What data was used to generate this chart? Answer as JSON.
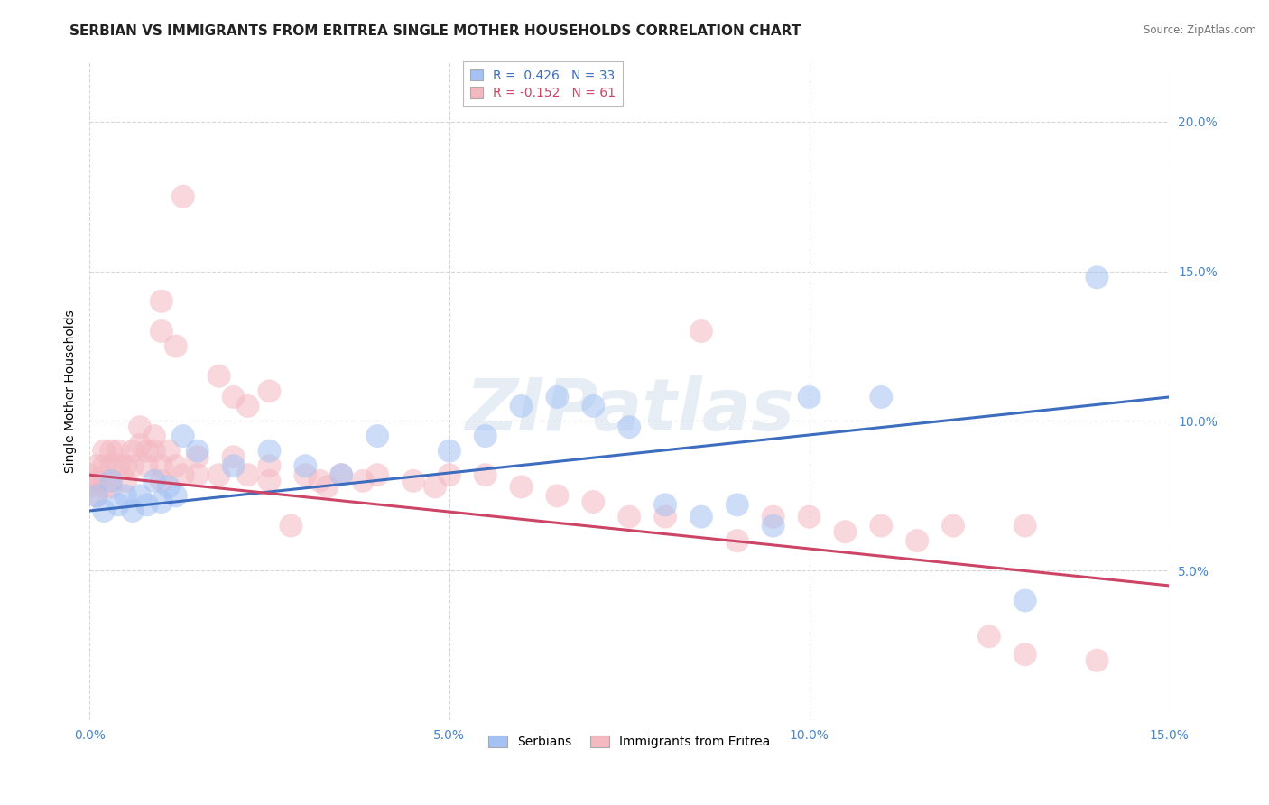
{
  "title": "SERBIAN VS IMMIGRANTS FROM ERITREA SINGLE MOTHER HOUSEHOLDS CORRELATION CHART",
  "source": "Source: ZipAtlas.com",
  "ylabel": "Single Mother Households",
  "watermark": "ZIPatlas",
  "xlim": [
    0.0,
    0.15
  ],
  "ylim": [
    0.0,
    0.22
  ],
  "xtick_vals": [
    0.0,
    0.05,
    0.1,
    0.15
  ],
  "ytick_vals": [
    0.05,
    0.1,
    0.15,
    0.2
  ],
  "legend_entry1": "R =  0.426   N = 33",
  "legend_entry2": "R = -0.152   N = 61",
  "legend_label1": "Serbians",
  "legend_label2": "Immigrants from Eritrea",
  "series1_color": "#a4c2f4",
  "series2_color": "#f4b8c1",
  "line1_color": "#3d6dbf",
  "line2_color": "#cc4466",
  "line1_y0": 0.07,
  "line1_y1": 0.108,
  "line2_y0": 0.082,
  "line2_y1": 0.045,
  "background_color": "#ffffff",
  "grid_color": "#cccccc",
  "title_fontsize": 11,
  "axis_fontsize": 10,
  "tick_fontsize": 10,
  "legend_fontsize": 10,
  "tick_color": "#4a86c8",
  "series1_x": [
    0.001,
    0.002,
    0.003,
    0.004,
    0.005,
    0.006,
    0.007,
    0.008,
    0.009,
    0.01,
    0.011,
    0.012,
    0.013,
    0.015,
    0.02,
    0.025,
    0.03,
    0.035,
    0.04,
    0.05,
    0.055,
    0.06,
    0.065,
    0.07,
    0.075,
    0.08,
    0.085,
    0.09,
    0.095,
    0.1,
    0.11,
    0.13,
    0.14
  ],
  "series1_y": [
    0.075,
    0.07,
    0.08,
    0.072,
    0.075,
    0.07,
    0.075,
    0.072,
    0.08,
    0.073,
    0.078,
    0.075,
    0.095,
    0.09,
    0.085,
    0.09,
    0.085,
    0.082,
    0.095,
    0.09,
    0.095,
    0.105,
    0.108,
    0.105,
    0.098,
    0.072,
    0.068,
    0.072,
    0.065,
    0.108,
    0.108,
    0.04,
    0.148
  ],
  "series2_x": [
    0.0,
    0.0,
    0.001,
    0.001,
    0.001,
    0.002,
    0.002,
    0.002,
    0.003,
    0.003,
    0.003,
    0.004,
    0.004,
    0.005,
    0.005,
    0.006,
    0.006,
    0.007,
    0.007,
    0.008,
    0.008,
    0.009,
    0.009,
    0.01,
    0.01,
    0.011,
    0.012,
    0.013,
    0.015,
    0.015,
    0.018,
    0.02,
    0.022,
    0.025,
    0.025,
    0.03,
    0.032,
    0.033,
    0.035,
    0.038,
    0.04,
    0.045,
    0.048,
    0.05,
    0.055,
    0.06,
    0.065,
    0.07,
    0.075,
    0.08,
    0.085,
    0.09,
    0.095,
    0.1,
    0.105,
    0.11,
    0.115,
    0.12,
    0.125,
    0.13,
    0.14
  ],
  "series2_y": [
    0.082,
    0.078,
    0.085,
    0.08,
    0.075,
    0.09,
    0.085,
    0.078,
    0.09,
    0.085,
    0.078,
    0.09,
    0.085,
    0.085,
    0.08,
    0.09,
    0.085,
    0.098,
    0.092,
    0.09,
    0.085,
    0.095,
    0.09,
    0.085,
    0.08,
    0.09,
    0.085,
    0.082,
    0.088,
    0.082,
    0.082,
    0.088,
    0.082,
    0.085,
    0.08,
    0.082,
    0.08,
    0.078,
    0.082,
    0.08,
    0.082,
    0.08,
    0.078,
    0.082,
    0.082,
    0.078,
    0.075,
    0.073,
    0.068,
    0.068,
    0.13,
    0.06,
    0.068,
    0.068,
    0.063,
    0.065,
    0.06,
    0.065,
    0.028,
    0.065,
    0.02
  ],
  "extra_pink_x": [
    0.013,
    0.01,
    0.01,
    0.012,
    0.018,
    0.025,
    0.02,
    0.022,
    0.028,
    0.13
  ],
  "extra_pink_y": [
    0.175,
    0.14,
    0.13,
    0.125,
    0.115,
    0.11,
    0.108,
    0.105,
    0.065,
    0.022
  ]
}
